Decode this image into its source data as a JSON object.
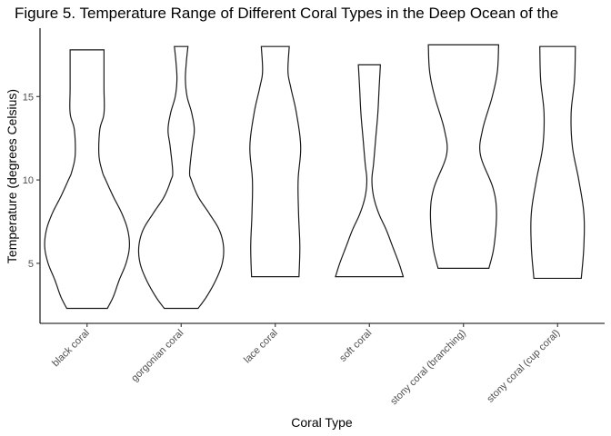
{
  "chart_data": {
    "type": "violin",
    "title": "Figure 5. Temperature Range of Different Coral Types in the Deep Ocean of the",
    "xlabel": "Coral Type",
    "ylabel": "Temperature (degrees Celsius)",
    "ylim": [
      1.4,
      19.1
    ],
    "yticks": [
      5,
      10,
      15
    ],
    "grid": false,
    "legend": "none",
    "colors": {
      "violin_outline": "#1a1a1a",
      "violin_fill": "#ffffff",
      "axis": "#000000",
      "tick_label": "#4d4d4d"
    },
    "categories": [
      "black coral",
      "gorgonian coral",
      "lace coral",
      "soft coral",
      "stony coral (branching)",
      "stony coral (cup coral)"
    ],
    "series": [
      {
        "category": "black coral",
        "min": 2.3,
        "max": 17.8,
        "density": [
          [
            2.3,
            0.48
          ],
          [
            3.0,
            0.62
          ],
          [
            4.0,
            0.76
          ],
          [
            5.0,
            0.92
          ],
          [
            6.0,
            1.0
          ],
          [
            7.0,
            0.96
          ],
          [
            8.0,
            0.82
          ],
          [
            9.0,
            0.62
          ],
          [
            10.0,
            0.44
          ],
          [
            10.5,
            0.36
          ],
          [
            11.5,
            0.28
          ],
          [
            13.0,
            0.3
          ],
          [
            14.0,
            0.4
          ],
          [
            15.5,
            0.4
          ],
          [
            17.0,
            0.4
          ],
          [
            17.8,
            0.4
          ]
        ]
      },
      {
        "category": "gorgonian coral",
        "min": 2.3,
        "max": 18.0,
        "density": [
          [
            2.3,
            0.4
          ],
          [
            3.0,
            0.6
          ],
          [
            4.0,
            0.82
          ],
          [
            5.0,
            0.97
          ],
          [
            6.0,
            1.0
          ],
          [
            7.0,
            0.9
          ],
          [
            8.0,
            0.66
          ],
          [
            9.0,
            0.4
          ],
          [
            10.0,
            0.24
          ],
          [
            10.5,
            0.2
          ],
          [
            12.0,
            0.26
          ],
          [
            13.0,
            0.31
          ],
          [
            14.0,
            0.25
          ],
          [
            15.0,
            0.14
          ],
          [
            16.0,
            0.1
          ],
          [
            17.0,
            0.12
          ],
          [
            18.0,
            0.16
          ]
        ]
      },
      {
        "category": "lace coral",
        "min": 4.2,
        "max": 18.0,
        "density": [
          [
            4.2,
            0.56
          ],
          [
            6.0,
            0.58
          ],
          [
            8.0,
            0.55
          ],
          [
            10.0,
            0.54
          ],
          [
            12.0,
            0.6
          ],
          [
            14.0,
            0.5
          ],
          [
            15.5,
            0.37
          ],
          [
            16.5,
            0.3
          ],
          [
            18.0,
            0.33
          ]
        ]
      },
      {
        "category": "soft coral",
        "min": 4.2,
        "max": 16.9,
        "density": [
          [
            4.2,
            0.8
          ],
          [
            5.0,
            0.7
          ],
          [
            6.0,
            0.55
          ],
          [
            7.0,
            0.4
          ],
          [
            8.0,
            0.22
          ],
          [
            9.0,
            0.1
          ],
          [
            10.0,
            0.06
          ],
          [
            11.0,
            0.1
          ],
          [
            12.5,
            0.15
          ],
          [
            14.0,
            0.2
          ],
          [
            15.5,
            0.23
          ],
          [
            16.9,
            0.26
          ]
        ]
      },
      {
        "category": "stony coral (branching)",
        "min": 4.7,
        "max": 18.1,
        "density": [
          [
            4.7,
            0.6
          ],
          [
            6.0,
            0.72
          ],
          [
            8.0,
            0.78
          ],
          [
            9.5,
            0.7
          ],
          [
            11.5,
            0.4
          ],
          [
            13.0,
            0.45
          ],
          [
            15.0,
            0.68
          ],
          [
            16.5,
            0.8
          ],
          [
            18.1,
            0.83
          ]
        ]
      },
      {
        "category": "stony coral (cup coral)",
        "min": 4.1,
        "max": 18.0,
        "density": [
          [
            4.1,
            0.56
          ],
          [
            6.0,
            0.62
          ],
          [
            8.0,
            0.62
          ],
          [
            10.0,
            0.5
          ],
          [
            12.0,
            0.35
          ],
          [
            14.0,
            0.32
          ],
          [
            16.0,
            0.4
          ],
          [
            18.0,
            0.42
          ]
        ]
      }
    ]
  }
}
